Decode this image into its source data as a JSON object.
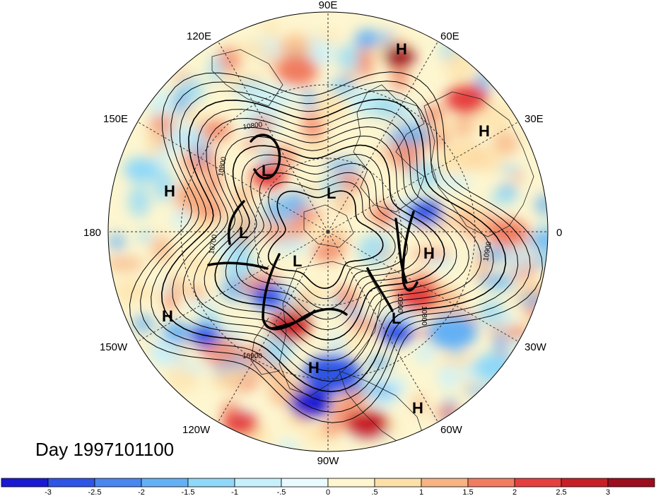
{
  "day_label": "Day 1997101100",
  "longitude_labels": [
    "90E",
    "60E",
    "30E",
    "0",
    "30W",
    "60W",
    "90W",
    "120W",
    "150W",
    "180",
    "150E",
    "120E"
  ],
  "contour_labels": [
    "10800",
    "10800",
    "10700",
    "10900",
    "10900",
    "10800",
    "10900"
  ],
  "pressure_centers": [
    {
      "type": "H"
    },
    {
      "type": "H"
    },
    {
      "type": "H"
    },
    {
      "type": "H"
    },
    {
      "type": "H"
    },
    {
      "type": "H"
    },
    {
      "type": "H"
    },
    {
      "type": "L"
    },
    {
      "type": "L"
    },
    {
      "type": "L"
    },
    {
      "type": "L"
    },
    {
      "type": "L"
    }
  ],
  "colorbar": {
    "tick_labels": [
      "-3",
      "-2.5",
      "-2",
      "-1.5",
      "-1",
      "-.5",
      "0",
      ".5",
      "1",
      "1.5",
      "2",
      "2.5",
      "3"
    ],
    "colors": [
      "#1a1ad2",
      "#2d55e6",
      "#4a86f0",
      "#64b0f4",
      "#8fd8f8",
      "#c6f0fc",
      "#eafafe",
      "#fdf6d0",
      "#fde0a8",
      "#f7b383",
      "#f17c5f",
      "#e54040",
      "#c81f27",
      "#9c0e1e"
    ]
  }
}
